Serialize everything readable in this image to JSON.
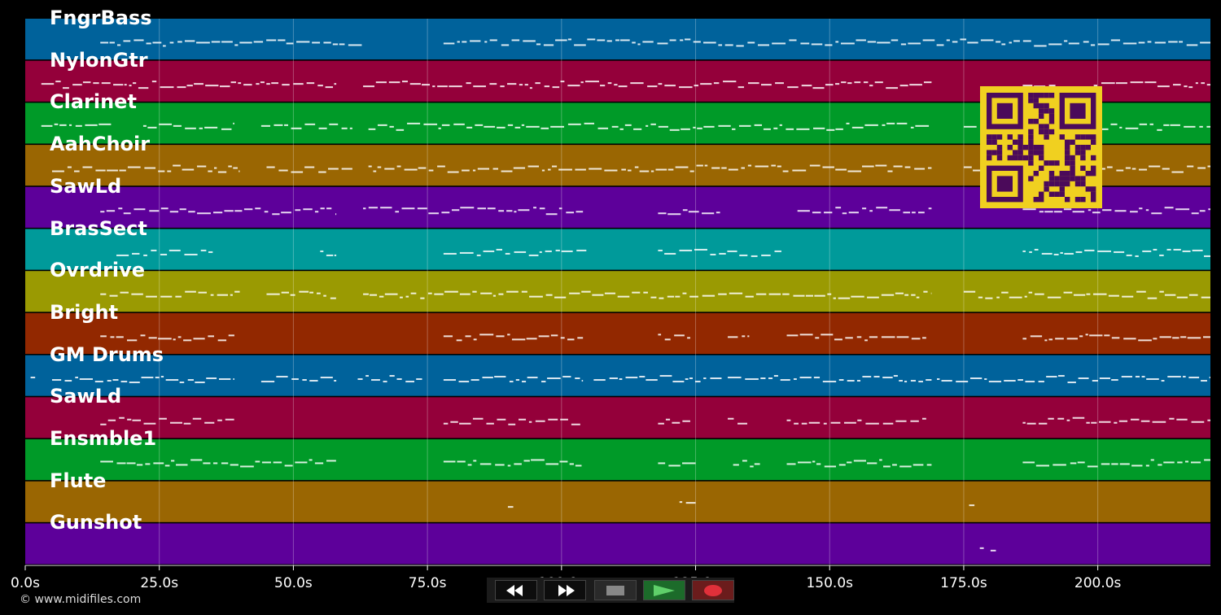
{
  "tracks": [
    {
      "name": "FngrBass",
      "color": "#00629b"
    },
    {
      "name": "NylonGtr",
      "color": "#94003a"
    },
    {
      "name": "Clarinet",
      "color": "#009a28"
    },
    {
      "name": "AahChoir",
      "color": "#9a6602"
    },
    {
      "name": "SawLd",
      "color": "#5d009a"
    },
    {
      "name": "BrasSect",
      "color": "#009a9a"
    },
    {
      "name": "Ovrdrive",
      "color": "#9a9a02"
    },
    {
      "name": "Bright",
      "color": "#922800"
    },
    {
      "name": "GM Drums",
      "color": "#00629b"
    },
    {
      "name": "SawLd",
      "color": "#94003a"
    },
    {
      "name": "Ensmble1",
      "color": "#009a28"
    },
    {
      "name": "Flute",
      "color": "#9a6602"
    },
    {
      "name": "Gunshot",
      "color": "#5d009a"
    }
  ],
  "timeline": {
    "max_seconds": 221,
    "ticks": [
      {
        "value": 0,
        "label": "0.0s"
      },
      {
        "value": 25,
        "label": "25.0s"
      },
      {
        "value": 50,
        "label": "50.0s"
      },
      {
        "value": 75,
        "label": "75.0s"
      },
      {
        "value": 100,
        "label": "100.0s"
      },
      {
        "value": 125,
        "label": "125.0s"
      },
      {
        "value": 150,
        "label": "150.0s"
      },
      {
        "value": 175,
        "label": "175.0s"
      },
      {
        "value": 200,
        "label": "200.0s"
      }
    ]
  },
  "note_segments": [
    {
      "track": 0,
      "ranges": [
        [
          14,
          63
        ],
        [
          78,
          221
        ]
      ]
    },
    {
      "track": 1,
      "ranges": [
        [
          3,
          58
        ],
        [
          63,
          169
        ],
        [
          186,
          221
        ]
      ]
    },
    {
      "track": 2,
      "ranges": [
        [
          3,
          16
        ],
        [
          22,
          39
        ],
        [
          44,
          61
        ],
        [
          64,
          169
        ],
        [
          175,
          221
        ]
      ]
    },
    {
      "track": 3,
      "ranges": [
        [
          5,
          40
        ],
        [
          45,
          61
        ],
        [
          64,
          169
        ],
        [
          175,
          221
        ]
      ]
    },
    {
      "track": 4,
      "ranges": [
        [
          14,
          58
        ],
        [
          63,
          104
        ],
        [
          118,
          130
        ],
        [
          144,
          169
        ],
        [
          186,
          221
        ]
      ]
    },
    {
      "track": 5,
      "ranges": [
        [
          17,
          35
        ],
        [
          55,
          58
        ],
        [
          78,
          105
        ],
        [
          118,
          141
        ],
        [
          186,
          221
        ]
      ]
    },
    {
      "track": 6,
      "ranges": [
        [
          14,
          40
        ],
        [
          45,
          58
        ],
        [
          63,
          169
        ],
        [
          175,
          221
        ]
      ]
    },
    {
      "track": 7,
      "ranges": [
        [
          14,
          39
        ],
        [
          78,
          104
        ],
        [
          118,
          124
        ],
        [
          131,
          135
        ],
        [
          142,
          168
        ],
        [
          186,
          221
        ]
      ]
    },
    {
      "track": 8,
      "ranges": [
        [
          1,
          2
        ],
        [
          5,
          39
        ],
        [
          44,
          58
        ],
        [
          62,
          74
        ],
        [
          78,
          104
        ],
        [
          106,
          130
        ],
        [
          131,
          169
        ],
        [
          170,
          221
        ]
      ]
    },
    {
      "track": 9,
      "ranges": [
        [
          14,
          39
        ],
        [
          78,
          104
        ],
        [
          118,
          124
        ],
        [
          131,
          135
        ],
        [
          142,
          168
        ],
        [
          186,
          221
        ]
      ]
    },
    {
      "track": 10,
      "ranges": [
        [
          14,
          58
        ],
        [
          78,
          104
        ],
        [
          118,
          125
        ],
        [
          132,
          137
        ],
        [
          142,
          169
        ],
        [
          186,
          221
        ]
      ]
    },
    {
      "track": 11,
      "ranges": [
        [
          90,
          91
        ],
        [
          122,
          125
        ],
        [
          176,
          177
        ]
      ]
    },
    {
      "track": 12,
      "ranges": [
        [
          178,
          179
        ],
        [
          180,
          181
        ]
      ]
    }
  ],
  "transport": {
    "rewind_icon": "rewind-icon",
    "forward_icon": "fast-forward-icon",
    "stop_icon": "stop-icon",
    "play_icon": "play-icon",
    "record_icon": "record-icon",
    "colors": {
      "play_bg": "#1c6b2a",
      "play_icon": "#5fd06a",
      "record_bg": "#6b1c1c",
      "record_icon": "#e0303a"
    }
  },
  "overlay": {
    "qr_icon": "qr-code-icon",
    "qr_color": "#f0d020",
    "qr_module_color": "#4b0a5a"
  },
  "credit": "© www.midifiles.com"
}
